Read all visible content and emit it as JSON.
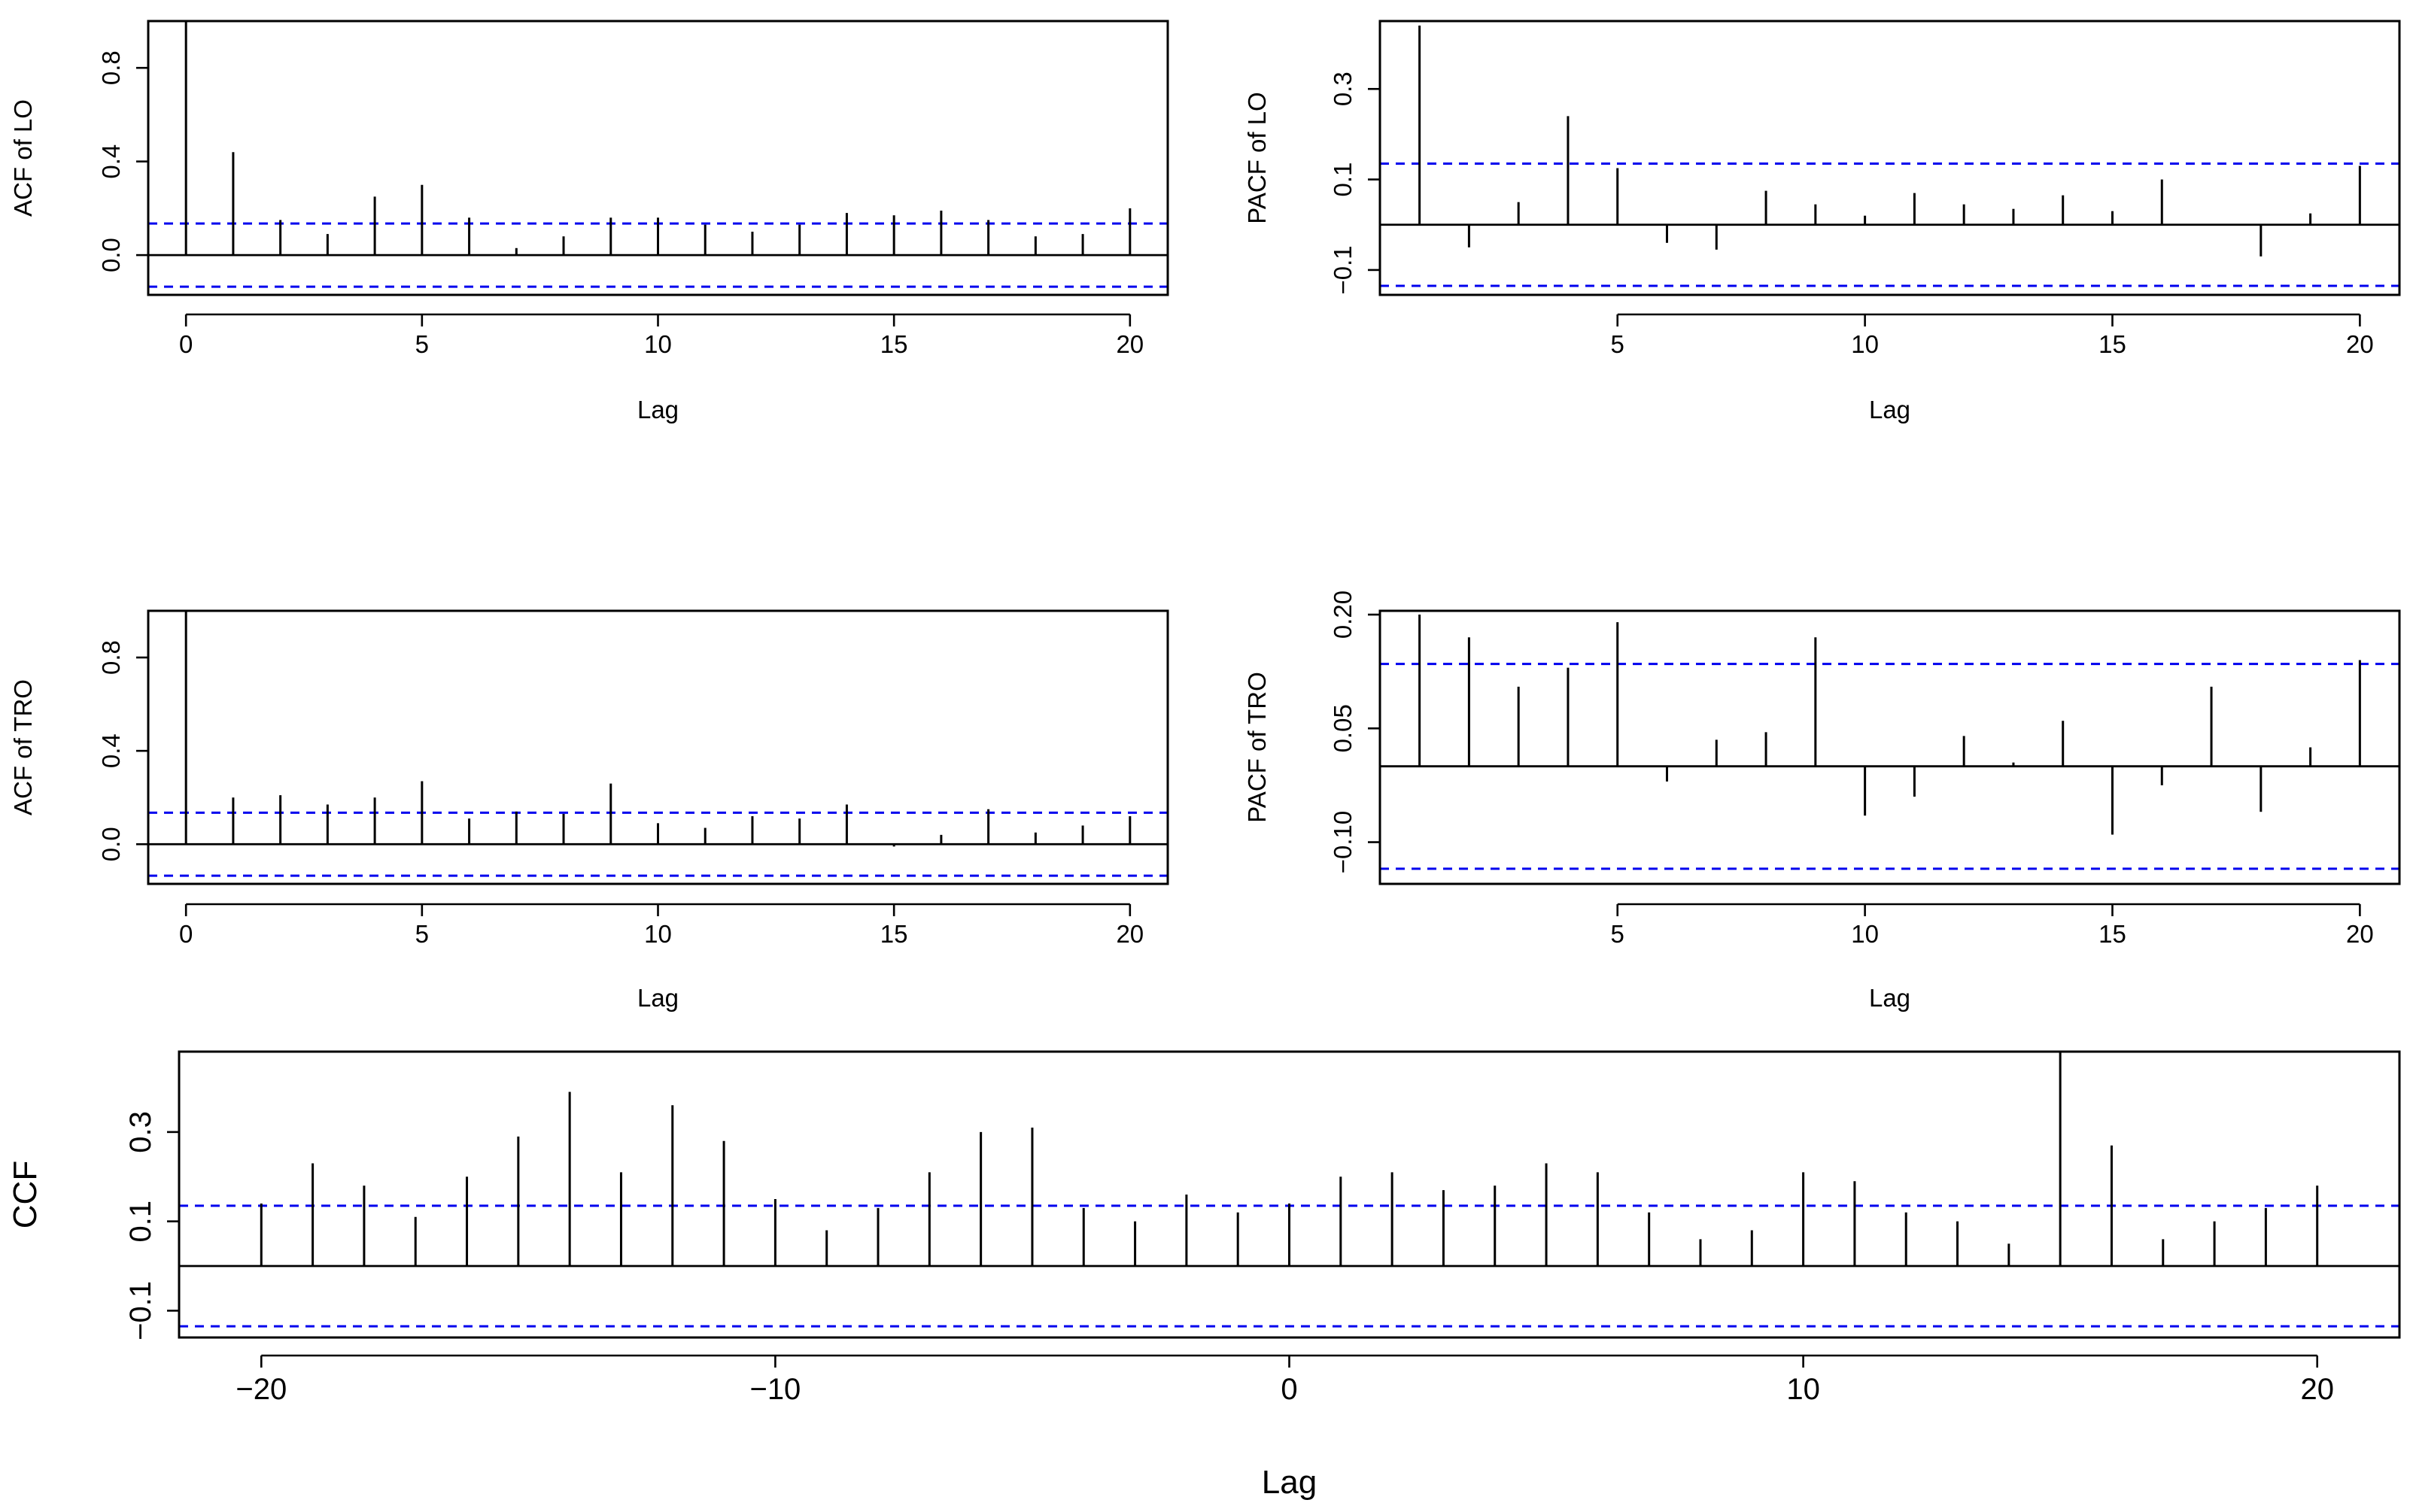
{
  "colors": {
    "ci_line": "#0000ee",
    "bars": "#000000",
    "background": "#ffffff"
  },
  "chart_data": [
    {
      "id": "acf_lo",
      "type": "bar",
      "title": "",
      "xlabel": "Lag",
      "ylabel": "ACF of LO",
      "xlim": [
        -0.8,
        20.8
      ],
      "ylim": [
        -0.17,
        1.0
      ],
      "xticks": [
        "0",
        "5",
        "10",
        "15",
        "20"
      ],
      "yticks": [
        "0.0",
        "0.4",
        "0.8"
      ],
      "ci": [
        -0.135,
        0.135
      ],
      "lags": [
        0,
        1,
        2,
        3,
        4,
        5,
        6,
        7,
        8,
        9,
        10,
        11,
        12,
        13,
        14,
        15,
        16,
        17,
        18,
        19,
        20
      ],
      "values": [
        1.0,
        0.44,
        0.15,
        0.09,
        0.25,
        0.3,
        0.16,
        0.03,
        0.08,
        0.16,
        0.16,
        0.13,
        0.1,
        0.13,
        0.18,
        0.17,
        0.19,
        0.15,
        0.08,
        0.09,
        0.2
      ]
    },
    {
      "id": "pacf_lo",
      "type": "bar",
      "title": "",
      "xlabel": "Lag",
      "ylabel": "PACF of LO",
      "xlim": [
        0.2,
        20.8
      ],
      "ylim": [
        -0.155,
        0.45
      ],
      "xticks": [
        "5",
        "10",
        "15",
        "20"
      ],
      "yticks": [
        "-0.1",
        "0.1",
        "0.3"
      ],
      "ci": [
        -0.135,
        0.135
      ],
      "lags": [
        1,
        2,
        3,
        4,
        5,
        6,
        7,
        8,
        9,
        10,
        11,
        12,
        13,
        14,
        15,
        16,
        17,
        18,
        19,
        20
      ],
      "values": [
        0.44,
        -0.05,
        0.05,
        0.24,
        0.125,
        -0.04,
        -0.055,
        0.075,
        0.045,
        0.02,
        0.07,
        0.045,
        0.035,
        0.065,
        0.03,
        0.1,
        0.0,
        -0.07,
        0.025,
        0.13
      ]
    },
    {
      "id": "acf_tro",
      "type": "bar",
      "title": "",
      "xlabel": "Lag",
      "ylabel": "ACF of TRO",
      "xlim": [
        -0.8,
        20.8
      ],
      "ylim": [
        -0.17,
        1.0
      ],
      "xticks": [
        "0",
        "5",
        "10",
        "15",
        "20"
      ],
      "yticks": [
        "0.0",
        "0.4",
        "0.8"
      ],
      "ci": [
        -0.135,
        0.135
      ],
      "lags": [
        0,
        1,
        2,
        3,
        4,
        5,
        6,
        7,
        8,
        9,
        10,
        11,
        12,
        13,
        14,
        15,
        16,
        17,
        18,
        19,
        20
      ],
      "values": [
        1.0,
        0.2,
        0.21,
        0.17,
        0.2,
        0.27,
        0.11,
        0.14,
        0.13,
        0.26,
        0.09,
        0.07,
        0.12,
        0.11,
        0.17,
        -0.01,
        0.04,
        0.15,
        0.05,
        0.08,
        0.12
      ]
    },
    {
      "id": "pacf_tro",
      "type": "bar",
      "title": "",
      "xlabel": "Lag",
      "ylabel": "PACF of TRO",
      "xlim": [
        0.2,
        20.8
      ],
      "ylim": [
        -0.155,
        0.205
      ],
      "xticks": [
        "5",
        "10",
        "15",
        "20"
      ],
      "yticks": [
        "-0.10",
        "0.05",
        "0.20"
      ],
      "ci": [
        -0.135,
        0.135
      ],
      "lags": [
        1,
        2,
        3,
        4,
        5,
        6,
        7,
        8,
        9,
        10,
        11,
        12,
        13,
        14,
        15,
        16,
        17,
        18,
        19,
        20
      ],
      "values": [
        0.2,
        0.17,
        0.105,
        0.13,
        0.19,
        -0.02,
        0.035,
        0.045,
        0.17,
        -0.065,
        -0.04,
        0.04,
        0.005,
        0.06,
        -0.09,
        -0.025,
        0.105,
        -0.06,
        0.025,
        0.14
      ]
    },
    {
      "id": "ccf",
      "type": "bar",
      "title": "",
      "xlabel": "Lag",
      "ylabel": "CCF",
      "xlim": [
        -21.6,
        21.6
      ],
      "ylim": [
        -0.16,
        0.48
      ],
      "xticks": [
        "-20",
        "-10",
        "0",
        "10",
        "20"
      ],
      "yticks": [
        "-0.1",
        "0.1",
        "0.3"
      ],
      "ci": [
        -0.135,
        0.135
      ],
      "lags": [
        -20,
        -19,
        -18,
        -17,
        -16,
        -15,
        -14,
        -13,
        -12,
        -11,
        -10,
        -9,
        -8,
        -7,
        -6,
        -5,
        -4,
        -3,
        -2,
        -1,
        0,
        1,
        2,
        3,
        4,
        5,
        6,
        7,
        8,
        9,
        10,
        11,
        12,
        13,
        14,
        15,
        16,
        17,
        18,
        19,
        20
      ],
      "values": [
        0.14,
        0.23,
        0.18,
        0.11,
        0.2,
        0.29,
        0.39,
        0.21,
        0.36,
        0.28,
        0.15,
        0.08,
        0.13,
        0.21,
        0.3,
        0.31,
        0.13,
        0.1,
        0.16,
        0.12,
        0.14,
        0.2,
        0.21,
        0.17,
        0.18,
        0.23,
        0.21,
        0.12,
        0.06,
        0.08,
        0.21,
        0.19,
        0.12,
        0.1,
        0.05,
        0.48,
        0.27,
        0.06,
        0.1,
        0.13,
        0.18
      ]
    }
  ]
}
